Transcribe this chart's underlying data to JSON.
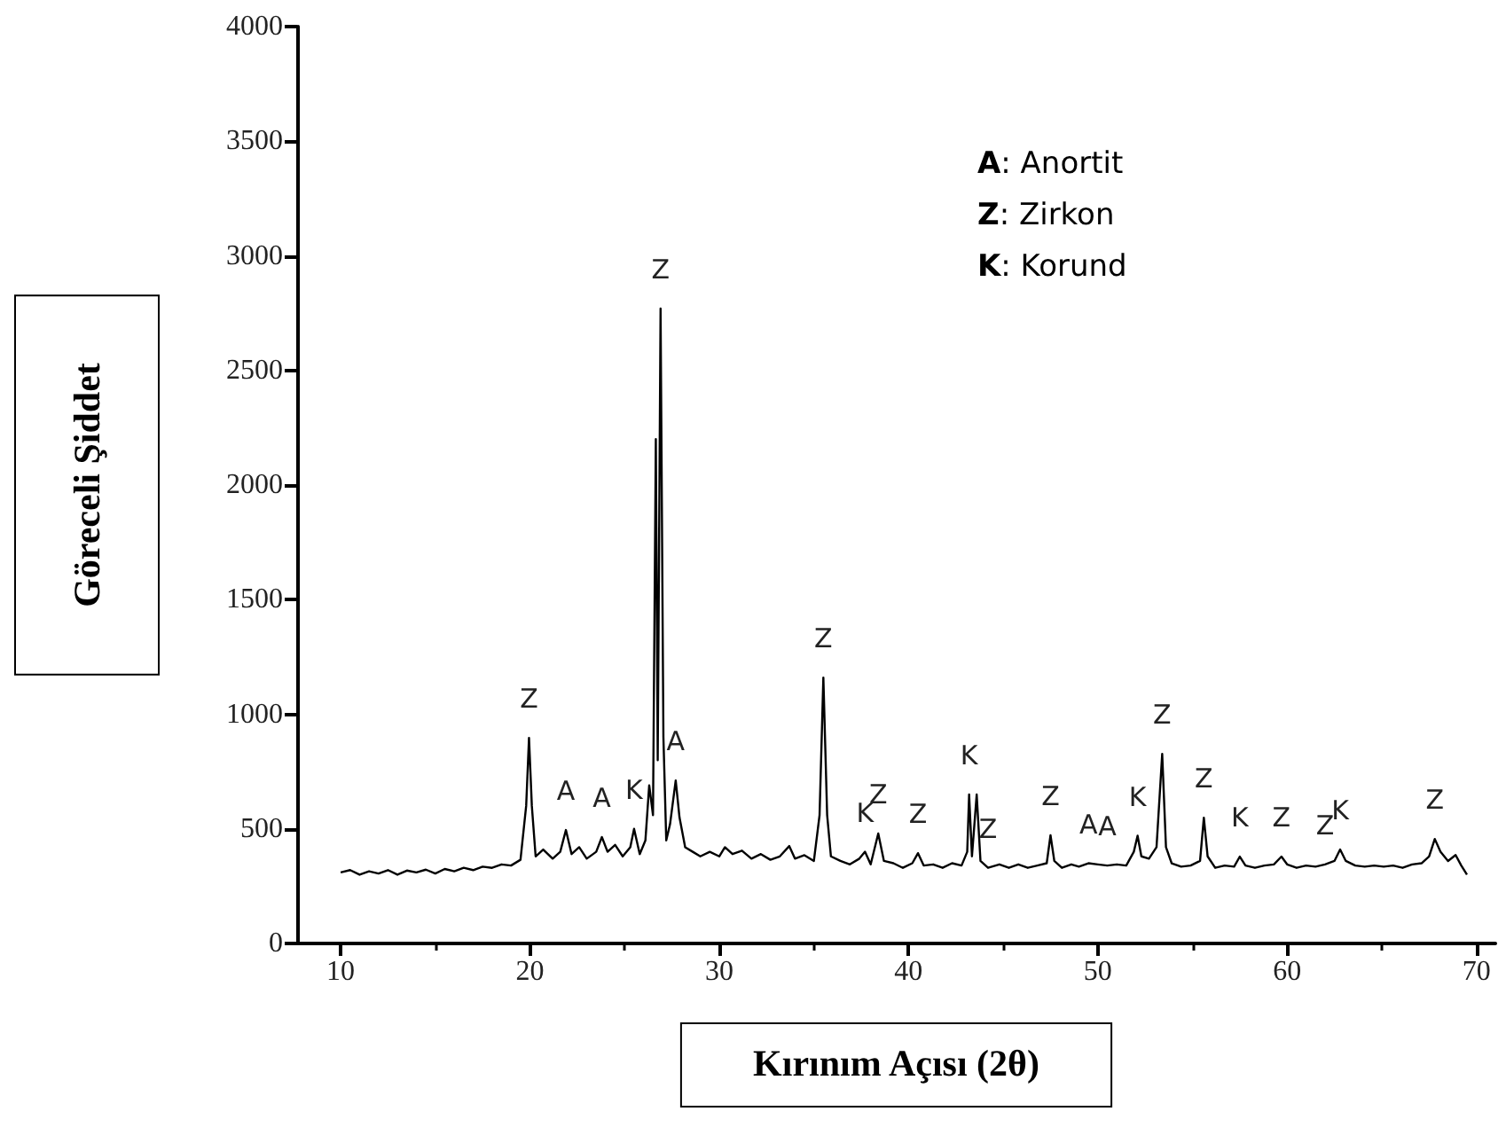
{
  "chart_data": {
    "type": "line",
    "xlabel": "Kırınım Açısı (2θ)",
    "ylabel": "Göreceli Şiddet",
    "xlim": [
      7.7,
      71
    ],
    "xticks": [
      10,
      20,
      30,
      40,
      50,
      60,
      70
    ],
    "ylim": [
      0,
      4000
    ],
    "yticks": [
      0,
      500,
      1000,
      1500,
      2000,
      2500,
      3000,
      3500,
      4000
    ],
    "marker": "none",
    "line_style": "solid",
    "series": [
      {
        "color": "#000000",
        "x": [
          10,
          10.5,
          11,
          11.5,
          12,
          12.5,
          13,
          13.5,
          14,
          14.5,
          15,
          15.5,
          16,
          16.5,
          17,
          17.5,
          18,
          18.5,
          19,
          19.5,
          19.8,
          19.95,
          20.1,
          20.3,
          20.7,
          21.2,
          21.6,
          21.9,
          22.2,
          22.6,
          23,
          23.5,
          23.8,
          24.1,
          24.5,
          24.9,
          25.3,
          25.5,
          25.8,
          26.1,
          26.3,
          26.5,
          26.65,
          26.75,
          26.9,
          27.05,
          27.2,
          27.4,
          27.7,
          27.9,
          28.2,
          28.6,
          29,
          29.5,
          30,
          30.3,
          30.7,
          31.2,
          31.7,
          32.2,
          32.7,
          33.2,
          33.7,
          34,
          34.5,
          35,
          35.3,
          35.5,
          35.7,
          35.9,
          36.4,
          36.9,
          37.4,
          37.7,
          38,
          38.4,
          38.7,
          39.2,
          39.7,
          40.2,
          40.5,
          40.8,
          41.3,
          41.8,
          42.3,
          42.8,
          43.1,
          43.2,
          43.35,
          43.6,
          43.8,
          44.2,
          44.8,
          45.3,
          45.8,
          46.3,
          46.8,
          47.3,
          47.5,
          47.7,
          48.1,
          48.6,
          49,
          49.5,
          50,
          50.5,
          51,
          51.5,
          51.9,
          52.1,
          52.3,
          52.7,
          53.1,
          53.4,
          53.6,
          53.9,
          54.4,
          54.9,
          55.4,
          55.6,
          55.8,
          56.2,
          56.7,
          57.2,
          57.5,
          57.8,
          58.3,
          58.8,
          59.3,
          59.7,
          60,
          60.5,
          61,
          61.5,
          62,
          62.5,
          62.8,
          63.1,
          63.6,
          64.1,
          64.6,
          65.1,
          65.6,
          66.1,
          66.6,
          67.1,
          67.5,
          67.8,
          68.1,
          68.5,
          68.9,
          69.2,
          69.5
        ],
        "values": [
          310,
          320,
          300,
          315,
          305,
          320,
          300,
          318,
          310,
          322,
          305,
          325,
          315,
          330,
          320,
          335,
          330,
          345,
          340,
          365,
          600,
          897,
          600,
          380,
          410,
          370,
          400,
          495,
          390,
          420,
          370,
          400,
          464,
          400,
          430,
          380,
          420,
          500,
          390,
          450,
          690,
          560,
          2200,
          800,
          2770,
          900,
          450,
          520,
          711,
          550,
          420,
          400,
          380,
          400,
          380,
          420,
          390,
          405,
          370,
          390,
          365,
          380,
          425,
          370,
          385,
          360,
          560,
          1160,
          560,
          380,
          360,
          345,
          370,
          400,
          345,
          480,
          360,
          350,
          330,
          350,
          394,
          340,
          345,
          330,
          350,
          340,
          400,
          650,
          380,
          650,
          360,
          330,
          345,
          330,
          345,
          330,
          340,
          350,
          472,
          360,
          330,
          345,
          335,
          350,
          345,
          340,
          345,
          340,
          400,
          470,
          380,
          370,
          420,
          827,
          420,
          350,
          335,
          340,
          360,
          549,
          380,
          330,
          340,
          335,
          379,
          340,
          330,
          340,
          345,
          379,
          345,
          330,
          340,
          335,
          345,
          360,
          410,
          360,
          340,
          335,
          340,
          335,
          340,
          330,
          345,
          350,
          380,
          456,
          400,
          360,
          386,
          340,
          300
        ]
      }
    ],
    "annotations": [
      "A: Anortit",
      "Z: Zirkon",
      "K: Korund",
      {
        "text": "Z",
        "x": 19.95,
        "y": 897
      },
      {
        "text": "A",
        "x": 21.9,
        "y": 495
      },
      {
        "text": "A",
        "x": 23.8,
        "y": 464
      },
      {
        "text": "K",
        "x": 25.5,
        "y": 500
      },
      {
        "text": "Z",
        "x": 26.9,
        "y": 2770
      },
      {
        "text": "A",
        "x": 27.7,
        "y": 711
      },
      {
        "text": "Z",
        "x": 35.5,
        "y": 1160
      },
      {
        "text": "K",
        "x": 37.7,
        "y": 400
      },
      {
        "text": "Z",
        "x": 38.4,
        "y": 480
      },
      {
        "text": "Z",
        "x": 40.5,
        "y": 394
      },
      {
        "text": "K",
        "x": 43.2,
        "y": 650
      },
      {
        "text": "Z",
        "x": 44.2,
        "y": 330
      },
      {
        "text": "Z",
        "x": 47.5,
        "y": 472
      },
      {
        "text": "A",
        "x": 49.5,
        "y": 350
      },
      {
        "text": "A",
        "x": 50.5,
        "y": 340
      },
      {
        "text": "K",
        "x": 52.1,
        "y": 470
      },
      {
        "text": "Z",
        "x": 53.4,
        "y": 827
      },
      {
        "text": "Z",
        "x": 55.6,
        "y": 549
      },
      {
        "text": "K",
        "x": 57.5,
        "y": 379
      },
      {
        "text": "Z",
        "x": 59.7,
        "y": 379
      },
      {
        "text": "Z",
        "x": 62,
        "y": 345
      },
      {
        "text": "K",
        "x": 62.8,
        "y": 410
      },
      {
        "text": "Z",
        "x": 67.8,
        "y": 456
      }
    ]
  }
}
